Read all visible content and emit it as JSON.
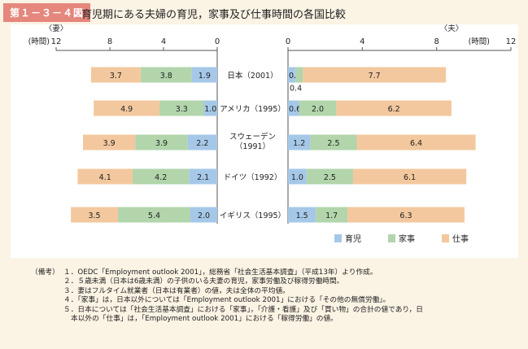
{
  "figure": {
    "label": "第１－３－４図",
    "title": "育児期にある夫婦の育児，家事及び仕事時間の各国比較"
  },
  "chart_data": {
    "type": "bar",
    "orientation": "horizontal-stacked",
    "unit": "(時間)",
    "categories": [
      "日本（2001）",
      "アメリカ（1995）",
      "スウェーデン\n（1991）",
      "ドイツ（1992）",
      "イギリス（1995）"
    ],
    "category_lines": [
      [
        "日本（2001）"
      ],
      [
        "アメリカ（1995）"
      ],
      [
        "スウェーデン",
        "（1991）"
      ],
      [
        "ドイツ（1992）"
      ],
      [
        "イギリス（1995）"
      ]
    ],
    "colors": {
      "育児": "#a6c8e8",
      "家事": "#b2d5ac",
      "仕事": "#f3c89e"
    },
    "legend": {
      "placement": "bottom-right",
      "entries": [
        "育児",
        "家事",
        "仕事"
      ]
    },
    "left_panel": {
      "axis_title": "〈妻〉",
      "unit": "(時間)",
      "xlim": [
        12,
        0
      ],
      "ticks": [
        "12",
        "8",
        "4",
        "0"
      ],
      "tick_values": [
        12,
        8,
        4,
        0
      ],
      "series": [
        {
          "name": "育児",
          "values": [
            1.9,
            1.0,
            2.2,
            2.1,
            2.0
          ],
          "labels": [
            "1.9",
            "1.0",
            "2.2",
            "2.1",
            "2.0"
          ]
        },
        {
          "name": "家事",
          "values": [
            3.8,
            3.3,
            3.9,
            4.2,
            5.4
          ],
          "labels": [
            "3.8",
            "3.3",
            "3.9",
            "4.2",
            "5.4"
          ]
        },
        {
          "name": "仕事",
          "values": [
            3.7,
            4.9,
            3.9,
            4.1,
            3.5
          ],
          "labels": [
            "3.7",
            "4.9",
            "3.9",
            "4.1",
            "3.5"
          ]
        }
      ]
    },
    "right_panel": {
      "axis_title": "〈夫〉",
      "unit": "(時間)",
      "xlim": [
        0,
        12
      ],
      "ticks": [
        "0",
        "4",
        "8",
        "12"
      ],
      "tick_values": [
        0,
        4,
        8,
        12
      ],
      "series": [
        {
          "name": "育児",
          "values": [
            0.4,
            0.6,
            1.2,
            1.0,
            1.5
          ],
          "labels": [
            "0.4",
            "0.6",
            "1.2",
            "1.0",
            "1.5"
          ]
        },
        {
          "name": "家事",
          "values": [
            0.4,
            2.0,
            2.5,
            2.5,
            1.7
          ],
          "labels": [
            "0.4",
            "2.0",
            "2.5",
            "2.5",
            "1.7"
          ]
        },
        {
          "name": "仕事",
          "values": [
            7.7,
            6.2,
            6.4,
            6.1,
            6.3
          ],
          "labels": [
            "7.7",
            "6.2",
            "6.4",
            "6.1",
            "6.3"
          ]
        }
      ]
    }
  },
  "notes": {
    "head": "（備考）",
    "items": [
      "１．OEDC「Employment outlook 2001」，総務省「社会生活基本調査」（平成13年）より作成。",
      "２．５歳未満（日本は6歳未満）の子供のいる夫妻の育児，家事労働及び稼得労働時間。",
      "３．妻はフルタイム就業者（日本は有業者）の値，夫は全体の平均値。",
      "４．「家事」は，日本以外については「Employment outlook 2001」における「その他の無償労働」。",
      "５．日本については「社会生活基本調査」における「家事」，「介護・看護」及び「買い物」の合計の値であり，日",
      "本以外の「仕事」は，「Employment outlook 2001」における「稼得労働」の値。"
    ]
  }
}
